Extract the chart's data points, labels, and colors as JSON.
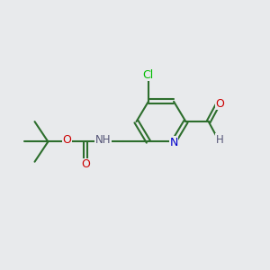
{
  "background_color": "#e8eaec",
  "bond_color": "#2d6e2d",
  "atom_colors": {
    "C": "#2d6e2d",
    "N": "#0000cc",
    "O": "#cc0000",
    "Cl": "#00bb00",
    "H": "#555577"
  },
  "figsize": [
    3.0,
    3.0
  ],
  "dpi": 100
}
